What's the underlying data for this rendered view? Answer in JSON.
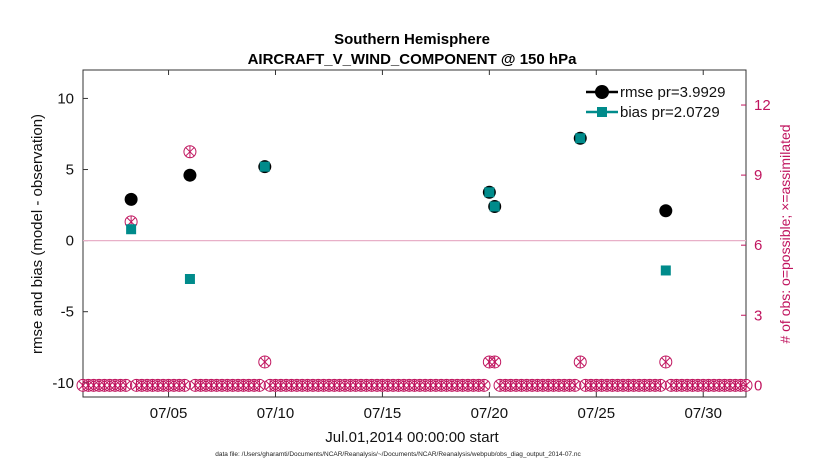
{
  "chart_data": {
    "type": "scatter",
    "title": "Southern Hemisphere",
    "subtitle": "AIRCRAFT_V_WIND_COMPONENT @ 150 hPa",
    "xlabel": "Jul.01,2014 00:00:00 start",
    "ylabel": "rmse and bias (model - observation)",
    "ylabel_right": "# of obs: o=possible; ×=assimilated",
    "xlim": [
      1,
      32
    ],
    "ylim": [
      -11,
      12
    ],
    "ylim_right": [
      -0.5,
      13.5
    ],
    "x_ticks": [
      5,
      10,
      15,
      20,
      25,
      30
    ],
    "x_tick_labels": [
      "07/05",
      "07/10",
      "07/15",
      "07/20",
      "07/25",
      "07/30"
    ],
    "y_ticks": [
      -10,
      -5,
      0,
      5,
      10
    ],
    "y_tick_labels": [
      "-10",
      "-5",
      "0",
      "5",
      "10"
    ],
    "y_ticks_right": [
      0,
      3,
      6,
      9,
      12
    ],
    "y_tick_labels_right": [
      "0",
      "3",
      "6",
      "9",
      "12"
    ],
    "zero_line": 0,
    "series": [
      {
        "name": "rmse pr=3.9929",
        "color": "#000000",
        "marker": "circle",
        "x": [
          3.25,
          6.0,
          9.5,
          20.0,
          20.25,
          24.25,
          28.25
        ],
        "y": [
          2.9,
          4.6,
          5.2,
          3.4,
          2.4,
          7.2,
          2.1
        ]
      },
      {
        "name": "bias pr=2.0729",
        "color": "#008b8b",
        "marker": "square",
        "x": [
          3.25,
          6.0,
          9.5,
          20.0,
          20.25,
          24.25,
          28.25
        ],
        "y": [
          0.8,
          -2.7,
          5.2,
          3.4,
          2.4,
          7.2,
          -2.1
        ]
      }
    ],
    "obs_counts": {
      "color": "#c0155f",
      "nonzero_x": [
        3.25,
        6.0,
        9.5,
        20.0,
        20.25,
        24.25,
        28.25
      ],
      "nonzero_counts": [
        7,
        10,
        1,
        1,
        1,
        1,
        1
      ],
      "zero_count_start": 1.0,
      "zero_count_step": 0.25,
      "zero_count_end": 32.0
    },
    "legend_position": "top-right"
  },
  "footnote": "data file: /Users/gharamti/Documents/NCAR/Reanalysis/~/Documents/NCAR/Reanalysis/webpub/obs_diag_output_2014-07.nc"
}
